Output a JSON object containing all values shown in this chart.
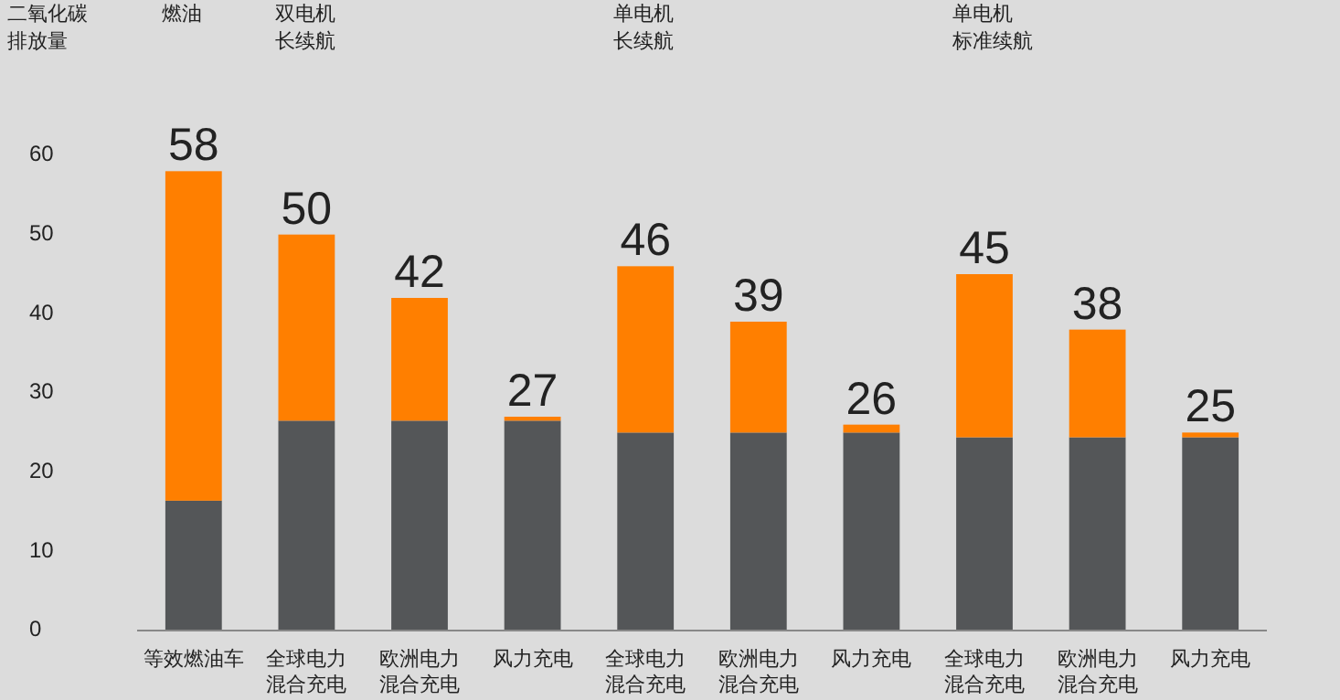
{
  "chart_data": {
    "type": "bar",
    "stacked": true,
    "ylabel": "二氧化碳排放量",
    "categories": [
      "等效燃油车",
      "全球电力混合充电",
      "欧洲电力混合充电",
      "风力充电",
      "全球电力混合充电",
      "欧洲电力混合充电",
      "风力充电",
      "全球电力混合充电",
      "欧洲电力混合充电",
      "风力充电"
    ],
    "series": [
      {
        "color": "#545658",
        "values": [
          16.4,
          26.5,
          26.5,
          26.5,
          25,
          25,
          25,
          24.4,
          24.4,
          24.4
        ]
      },
      {
        "color": "#ff7f00",
        "values": [
          41.6,
          23.5,
          15.5,
          0.5,
          21,
          14,
          1,
          20.6,
          13.6,
          0.6
        ]
      }
    ],
    "totals": [
      "58",
      "50",
      "42",
      "27",
      "46",
      "39",
      "26",
      "45",
      "38",
      "25"
    ],
    "annotations": [
      "燃油",
      "双电机长续航",
      "单电机长续航",
      "单电机标准续航"
    ],
    "ylim": [
      0,
      60
    ],
    "yticks": [
      0,
      10,
      20,
      30,
      40,
      50,
      60
    ],
    "grid": false
  }
}
